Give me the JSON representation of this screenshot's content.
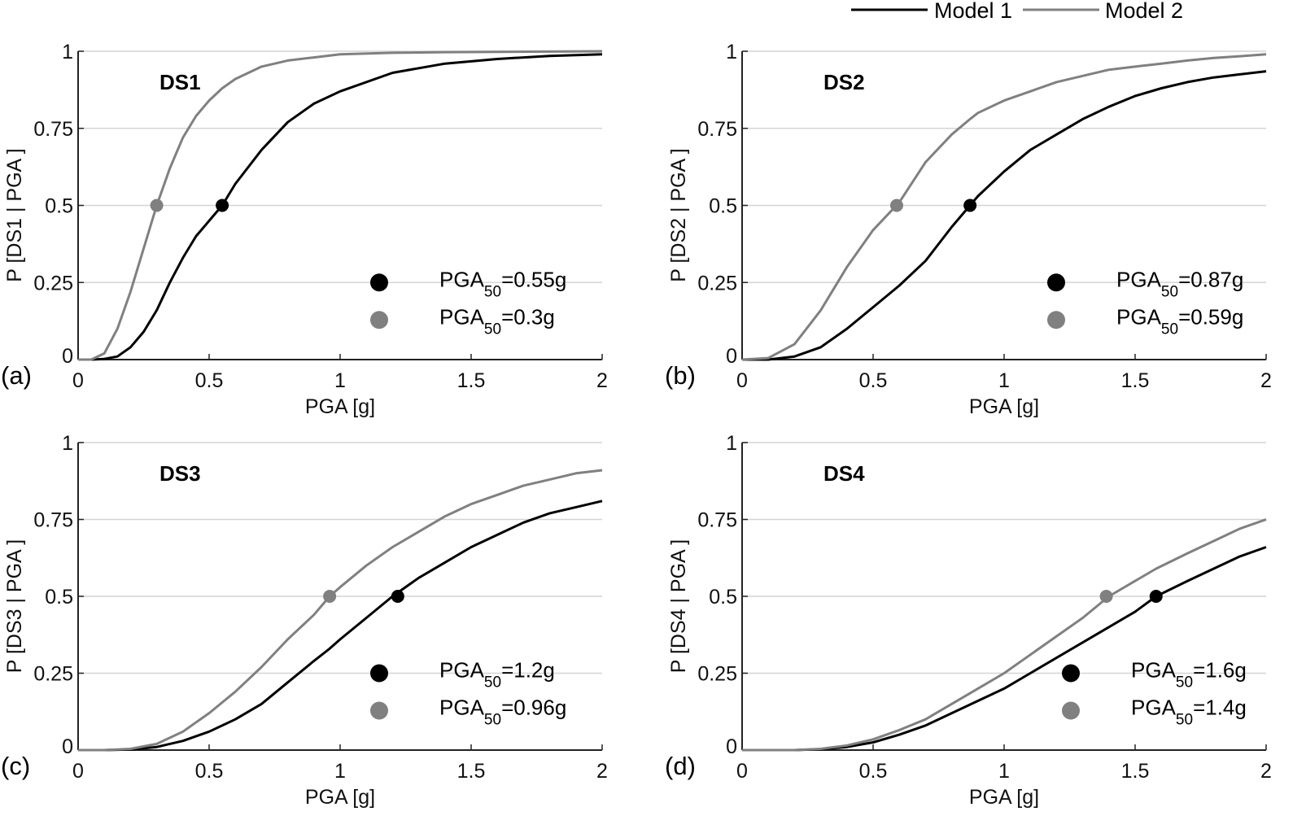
{
  "legend": {
    "position": "top-right",
    "entries": [
      {
        "name": "Model 1",
        "color": "#000000"
      },
      {
        "name": "Model 2",
        "color": "#808080"
      }
    ]
  },
  "chart_data": [
    {
      "type": "line",
      "panel_letter": "(a)",
      "title": "DS1",
      "xlabel": "PGA [g]",
      "ylabel": "P [DS1 | PGA ]",
      "xlim": [
        0,
        2
      ],
      "ylim": [
        0,
        1
      ],
      "xticks": [
        "0",
        "0.5",
        "1",
        "1.5",
        "2"
      ],
      "yticks": [
        "0",
        "0.25",
        "0.5",
        "0.75",
        "1"
      ],
      "grid": "horizontal",
      "x": [
        0,
        0.05,
        0.1,
        0.15,
        0.2,
        0.25,
        0.3,
        0.35,
        0.4,
        0.45,
        0.5,
        0.55,
        0.6,
        0.7,
        0.8,
        0.9,
        1.0,
        1.2,
        1.4,
        1.6,
        1.8,
        2.0
      ],
      "series": [
        {
          "name": "Model 1",
          "color": "#000000",
          "median": 0.55,
          "values": [
            0,
            0,
            0.002,
            0.01,
            0.04,
            0.09,
            0.16,
            0.25,
            0.33,
            0.4,
            0.45,
            0.5,
            0.57,
            0.68,
            0.77,
            0.83,
            0.87,
            0.93,
            0.96,
            0.975,
            0.985,
            0.99
          ]
        },
        {
          "name": "Model 2",
          "color": "#808080",
          "median": 0.3,
          "values": [
            0,
            0,
            0.02,
            0.1,
            0.22,
            0.36,
            0.5,
            0.62,
            0.72,
            0.79,
            0.84,
            0.88,
            0.91,
            0.95,
            0.97,
            0.98,
            0.99,
            0.995,
            0.997,
            0.998,
            0.999,
            1.0
          ]
        }
      ],
      "markers": [
        {
          "series": "Model 1",
          "x": 0.55,
          "y": 0.5
        },
        {
          "series": "Model 2",
          "x": 0.3,
          "y": 0.5
        }
      ],
      "annotations": [
        {
          "series": "Model 1",
          "prefix": "PGA",
          "sub": "50",
          "suffix": "=0.55g"
        },
        {
          "series": "Model 2",
          "prefix": "PGA",
          "sub": "50",
          "suffix": "=0.3g"
        }
      ]
    },
    {
      "type": "line",
      "panel_letter": "(b)",
      "title": "DS2",
      "xlabel": "PGA [g]",
      "ylabel": "P [DS2 | PGA ]",
      "xlim": [
        0,
        2
      ],
      "ylim": [
        0,
        1
      ],
      "xticks": [
        "0",
        "0.5",
        "1",
        "1.5",
        "2"
      ],
      "yticks": [
        "0",
        "0.25",
        "0.5",
        "0.75",
        "1"
      ],
      "grid": "horizontal",
      "x": [
        0,
        0.1,
        0.2,
        0.3,
        0.4,
        0.5,
        0.6,
        0.7,
        0.8,
        0.87,
        0.9,
        1.0,
        1.1,
        1.2,
        1.3,
        1.4,
        1.5,
        1.6,
        1.7,
        1.8,
        1.9,
        2.0
      ],
      "series": [
        {
          "name": "Model 1",
          "color": "#000000",
          "median": 0.87,
          "values": [
            0,
            0,
            0.01,
            0.04,
            0.1,
            0.17,
            0.24,
            0.32,
            0.43,
            0.5,
            0.53,
            0.61,
            0.68,
            0.73,
            0.78,
            0.82,
            0.855,
            0.88,
            0.9,
            0.915,
            0.925,
            0.935
          ]
        },
        {
          "name": "Model 2",
          "color": "#808080",
          "median": 0.59,
          "values": [
            0,
            0.005,
            0.05,
            0.16,
            0.3,
            0.42,
            0.51,
            0.64,
            0.73,
            0.78,
            0.8,
            0.84,
            0.87,
            0.9,
            0.92,
            0.94,
            0.95,
            0.96,
            0.97,
            0.978,
            0.984,
            0.99
          ]
        }
      ],
      "markers": [
        {
          "series": "Model 1",
          "x": 0.87,
          "y": 0.5
        },
        {
          "series": "Model 2",
          "x": 0.59,
          "y": 0.5
        }
      ],
      "annotations": [
        {
          "series": "Model 1",
          "prefix": "PGA",
          "sub": "50",
          "suffix": "=0.87g"
        },
        {
          "series": "Model 2",
          "prefix": "PGA",
          "sub": "50",
          "suffix": "=0.59g"
        }
      ]
    },
    {
      "type": "line",
      "panel_letter": "(c)",
      "title": "DS3",
      "xlabel": "PGA [g]",
      "ylabel": "P [DS3 | PGA ]",
      "xlim": [
        0,
        2
      ],
      "ylim": [
        0,
        1
      ],
      "xticks": [
        "0",
        "0.5",
        "1",
        "1.5",
        "2"
      ],
      "yticks": [
        "0",
        "0.25",
        "0.5",
        "0.75",
        "1"
      ],
      "grid": "horizontal",
      "x": [
        0,
        0.1,
        0.2,
        0.3,
        0.4,
        0.5,
        0.6,
        0.7,
        0.8,
        0.9,
        0.96,
        1.0,
        1.1,
        1.2,
        1.3,
        1.4,
        1.5,
        1.6,
        1.7,
        1.8,
        1.9,
        2.0
      ],
      "series": [
        {
          "name": "Model 1",
          "color": "#000000",
          "median": 1.2,
          "values": [
            0,
            0,
            0.002,
            0.01,
            0.03,
            0.06,
            0.1,
            0.15,
            0.22,
            0.29,
            0.33,
            0.36,
            0.43,
            0.5,
            0.56,
            0.61,
            0.66,
            0.7,
            0.74,
            0.77,
            0.79,
            0.81
          ]
        },
        {
          "name": "Model 2",
          "color": "#808080",
          "median": 0.96,
          "values": [
            0,
            0,
            0.004,
            0.02,
            0.06,
            0.12,
            0.19,
            0.27,
            0.36,
            0.44,
            0.5,
            0.53,
            0.6,
            0.66,
            0.71,
            0.76,
            0.8,
            0.83,
            0.86,
            0.88,
            0.9,
            0.91
          ]
        }
      ],
      "markers": [
        {
          "series": "Model 1",
          "x": 1.22,
          "y": 0.5
        },
        {
          "series": "Model 2",
          "x": 0.96,
          "y": 0.5
        }
      ],
      "annotations": [
        {
          "series": "Model 1",
          "prefix": "PGA",
          "sub": "50",
          "suffix": "=1.2g"
        },
        {
          "series": "Model 2",
          "prefix": "PGA",
          "sub": "50",
          "suffix": "=0.96g"
        }
      ]
    },
    {
      "type": "line",
      "panel_letter": "(d)",
      "title": "DS4",
      "xlabel": "PGA [g]",
      "ylabel": "P [DS4 | PGA ]",
      "xlim": [
        0,
        2
      ],
      "ylim": [
        0,
        1
      ],
      "xticks": [
        "0",
        "0.5",
        "1",
        "1.5",
        "2"
      ],
      "yticks": [
        "0",
        "0.25",
        "0.5",
        "0.75",
        "1"
      ],
      "grid": "horizontal",
      "x": [
        0,
        0.1,
        0.2,
        0.3,
        0.4,
        0.5,
        0.6,
        0.7,
        0.8,
        0.9,
        1.0,
        1.1,
        1.2,
        1.3,
        1.4,
        1.5,
        1.58,
        1.7,
        1.8,
        1.9,
        2.0
      ],
      "series": [
        {
          "name": "Model 1",
          "color": "#000000",
          "median": 1.6,
          "values": [
            0,
            0,
            0,
            0.003,
            0.01,
            0.025,
            0.05,
            0.08,
            0.12,
            0.16,
            0.2,
            0.25,
            0.3,
            0.35,
            0.4,
            0.45,
            0.5,
            0.55,
            0.59,
            0.63,
            0.66
          ]
        },
        {
          "name": "Model 2",
          "color": "#808080",
          "median": 1.4,
          "values": [
            0,
            0,
            0,
            0.004,
            0.015,
            0.035,
            0.065,
            0.1,
            0.15,
            0.2,
            0.25,
            0.31,
            0.37,
            0.43,
            0.5,
            0.55,
            0.59,
            0.64,
            0.68,
            0.72,
            0.75
          ]
        }
      ],
      "markers": [
        {
          "series": "Model 1",
          "x": 1.58,
          "y": 0.5
        },
        {
          "series": "Model 2",
          "x": 1.39,
          "y": 0.5
        }
      ],
      "annotations": [
        {
          "series": "Model 1",
          "prefix": "PGA",
          "sub": "50",
          "suffix": "=1.6g"
        },
        {
          "series": "Model 2",
          "prefix": "PGA",
          "sub": "50",
          "suffix": "=1.4g"
        }
      ]
    }
  ]
}
